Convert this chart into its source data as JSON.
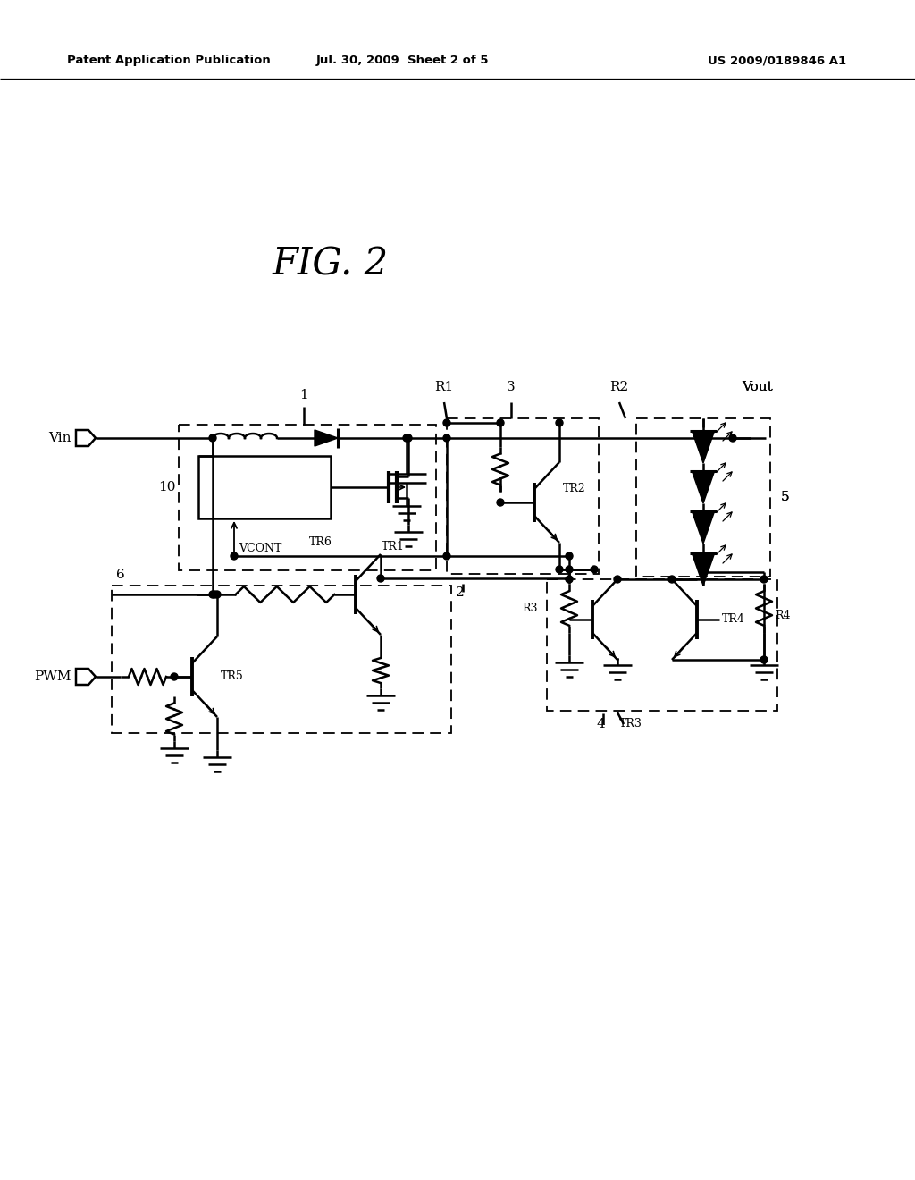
{
  "bg_color": "#ffffff",
  "line_color": "#000000",
  "header_left": "Patent Application Publication",
  "header_mid": "Jul. 30, 2009  Sheet 2 of 5",
  "header_right": "US 2009/0189846 A1",
  "fig_title": "FIG. 2"
}
